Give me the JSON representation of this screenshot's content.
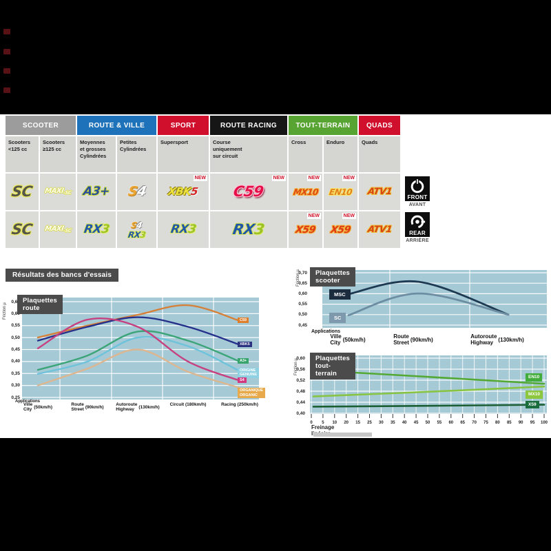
{
  "catalog": {
    "headers": [
      {
        "label": "SCOOTER",
        "color": "#9c9c9c"
      },
      {
        "label": "ROUTE & VILLE",
        "color": "#1d72b9"
      },
      {
        "label": "SPORT",
        "color": "#d00f2c"
      },
      {
        "label": "ROUTE RACING",
        "color": "#161616"
      },
      {
        "label": "TOUT-TERRAIN",
        "color": "#58a433"
      },
      {
        "label": "QUADS",
        "color": "#d00f2c"
      }
    ],
    "subheaders": [
      {
        "lines": [
          "Scooters",
          "<125 cc"
        ]
      },
      {
        "lines": [
          "Scooters",
          "≥125 cc"
        ]
      },
      {
        "lines": [
          "Moyennes",
          "et grosses",
          "Cylindrées"
        ]
      },
      {
        "lines": [
          "Petites",
          "Cylindrées"
        ]
      },
      {
        "lines": [
          "Supersport"
        ]
      },
      {
        "lines": [
          "Course",
          "uniquement",
          "sur circuit"
        ]
      },
      {
        "lines": [
          "Cross"
        ]
      },
      {
        "lines": [
          "Enduro"
        ]
      },
      {
        "lines": [
          "Quads"
        ]
      }
    ],
    "new_badge": "NEW",
    "front_row": [
      {
        "products": [
          {
            "text": "SC",
            "style": "sc"
          }
        ]
      },
      {
        "products": [
          {
            "text": "MAXI-SC",
            "style": "maxisc"
          }
        ]
      },
      {
        "products": [
          {
            "text": "A3+",
            "style": "a3"
          }
        ]
      },
      {
        "products": [
          {
            "text": "S4",
            "style": "s4"
          }
        ]
      },
      {
        "products": [
          {
            "text": "XBK5",
            "style": "xbk5"
          }
        ],
        "new": true
      },
      {
        "products": [
          {
            "text": "C59",
            "style": "c59",
            "big": true
          }
        ],
        "new": true
      },
      {
        "products": [
          {
            "text": "MX10",
            "style": "mx10"
          }
        ],
        "new": true
      },
      {
        "products": [
          {
            "text": "EN10",
            "style": "en10"
          }
        ],
        "new": true
      },
      {
        "products": [
          {
            "text": "ATV1",
            "style": "atv1"
          }
        ]
      }
    ],
    "rear_row": [
      {
        "products": [
          {
            "text": "SC",
            "style": "sc"
          }
        ]
      },
      {
        "products": [
          {
            "text": "MAXI-SC",
            "style": "maxisc"
          }
        ]
      },
      {
        "products": [
          {
            "text": "RX3",
            "style": "rx3"
          }
        ]
      },
      {
        "products": [
          {
            "text": "S4",
            "style": "s4",
            "sm": true
          },
          {
            "text": "RX3",
            "style": "rx3",
            "sm": true
          }
        ]
      },
      {
        "products": [
          {
            "text": "RX3",
            "style": "rx3"
          }
        ]
      },
      {
        "products": [
          {
            "text": "RX3",
            "style": "rx3",
            "big": true
          }
        ]
      },
      {
        "products": [
          {
            "text": "X59",
            "style": "x59"
          }
        ],
        "new": true
      },
      {
        "products": [
          {
            "text": "X59",
            "style": "x59"
          }
        ],
        "new": true
      },
      {
        "products": [
          {
            "text": "ATV1",
            "style": "atv1"
          }
        ]
      }
    ],
    "front_marker": {
      "label": "FRONT",
      "sub": "AVANT"
    },
    "rear_marker": {
      "label": "REAR",
      "sub": "ARRIÈRE"
    }
  },
  "section_title": "Résultats des bancs d'essais",
  "chart_data": [
    {
      "type": "line",
      "title": "Plaquettes route",
      "ylabel": "Friction µ",
      "caption": "Applications",
      "yticks": [
        "0,65",
        "0,60",
        "0,55",
        "0,50",
        "0,45",
        "0,40",
        "0,35",
        "0,30",
        "0,25"
      ],
      "ytick_vals": [
        0.65,
        0.6,
        0.55,
        0.5,
        0.45,
        0.4,
        0.35,
        0.3,
        0.25
      ],
      "ylim": [
        0.25,
        0.65
      ],
      "grid": true,
      "legend_position": "right",
      "categories": [
        {
          "fr": "Ville",
          "en": "City",
          "speed": "(50km/h)"
        },
        {
          "fr": "Route",
          "en": "Street",
          "speed": "(90km/h)"
        },
        {
          "fr": "Autoroute",
          "en": "Highway",
          "speed": "(130km/h)"
        },
        {
          "fr": "Circuit",
          "en": "",
          "speed": "(180km/h)"
        },
        {
          "fr": "Racing",
          "en": "",
          "speed": "(250km/h)"
        }
      ],
      "series": [
        {
          "name": "C59",
          "color": "#d5813a",
          "label_bg": "#df7f2b",
          "label_lines": [
            "C59"
          ],
          "values": [
            0.5,
            0.55,
            0.595,
            0.635,
            0.57
          ]
        },
        {
          "name": "XBK5",
          "color": "#25308a",
          "label_bg": "#2b327f",
          "label_lines": [
            "XBK5"
          ],
          "values": [
            0.487,
            0.545,
            0.585,
            0.545,
            0.47
          ]
        },
        {
          "name": "A3+",
          "color": "#3ba578",
          "label_bg": "#36a46b",
          "label_lines": [
            "A3+"
          ],
          "values": [
            0.365,
            0.425,
            0.525,
            0.487,
            0.4
          ]
        },
        {
          "name": "ORIGINE",
          "color": "#6ec3da",
          "label_bg": "#8fd0e2",
          "label_lines": [
            "ORIGINE",
            "GENUINE"
          ],
          "values": [
            0.348,
            0.4,
            0.5,
            0.464,
            0.36
          ]
        },
        {
          "name": "S4",
          "color": "#c6417f",
          "label_bg": "#d23880",
          "label_lines": [
            "S4"
          ],
          "values": [
            0.455,
            0.575,
            0.545,
            0.4,
            0.32
          ]
        },
        {
          "name": "ORGANIQUE",
          "color": "#ddb68f",
          "label_bg": "#e8a94b",
          "label_lines": [
            "ORGANIQUE",
            "ORGANIC"
          ],
          "values": [
            0.3,
            0.37,
            0.45,
            0.357,
            0.29
          ]
        }
      ]
    },
    {
      "type": "line",
      "title": "Plaquettes scooter",
      "ylabel": "Friction µ",
      "caption": "Applications",
      "yticks": [
        "0,70",
        "0,65",
        "0,60",
        "0,55",
        "0,50",
        "0,45"
      ],
      "ytick_vals": [
        0.7,
        0.65,
        0.6,
        0.55,
        0.5,
        0.45
      ],
      "ylim": [
        0.45,
        0.7
      ],
      "grid": true,
      "legend_position": "left-start",
      "categories": [
        {
          "fr": "Ville",
          "en": "City",
          "speed": "(50km/h)"
        },
        {
          "fr": "Route",
          "en": "Street",
          "speed": "(90km/h)"
        },
        {
          "fr": "Autoroute",
          "en": "Highway",
          "speed": "(130km/h)"
        }
      ],
      "series": [
        {
          "name": "MSC",
          "color": "#1d3a52",
          "label_bg": "#1b2c3e",
          "label_lines": [
            "MSC"
          ],
          "values": [
            0.598,
            0.657,
            0.5
          ]
        },
        {
          "name": "SC",
          "color": "#6d8da2",
          "label_bg": "#7e99ab",
          "label_lines": [
            "SC"
          ],
          "values": [
            0.497,
            0.601,
            0.5
          ]
        }
      ]
    },
    {
      "type": "line",
      "title": "Plaquettes tout-terrain",
      "ylabel": "Friction µ",
      "xlabel": "Freinage linéaire",
      "yticks": [
        "0,60",
        "0,56",
        "0,52",
        "0,48",
        "0,44",
        "0,40"
      ],
      "ytick_vals": [
        0.6,
        0.56,
        0.52,
        0.48,
        0.44,
        0.4
      ],
      "ylim": [
        0.4,
        0.6
      ],
      "grid": true,
      "legend_position": "right",
      "xticks": [
        "0",
        "5",
        "10",
        "20",
        "15",
        "25",
        "30",
        "35",
        "40",
        "45",
        "50",
        "55",
        "60",
        "65",
        "70",
        "75",
        "80",
        "85",
        "90",
        "95",
        "100"
      ],
      "series": [
        {
          "name": "EN10",
          "color": "#54a934",
          "label_bg": "#43ad3c",
          "label_lines": [
            "EN10"
          ],
          "values": [
            0.556,
            0.532,
            0.507
          ]
        },
        {
          "name": "MX10",
          "color": "#88c443",
          "label_bg": "#8cc73e",
          "label_lines": [
            "MX10"
          ],
          "values": [
            0.461,
            0.478,
            0.497
          ]
        },
        {
          "name": "X59",
          "color": "#1b5e33",
          "label_bg": "#1a6e3e",
          "label_lines": [
            "X59"
          ],
          "values": [
            0.424,
            0.427,
            0.431
          ]
        }
      ]
    }
  ]
}
